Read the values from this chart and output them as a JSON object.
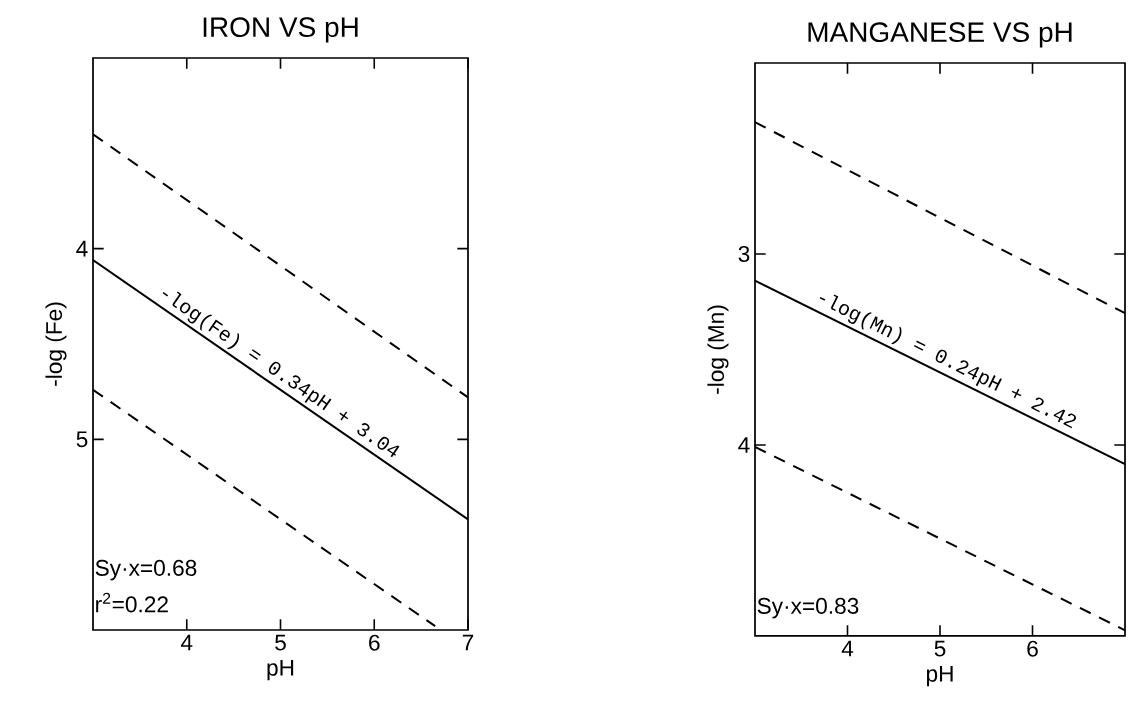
{
  "chart_data": [
    {
      "type": "line",
      "title": "IRON VS pH",
      "xlabel": "pH",
      "ylabel": "-log (Fe)",
      "xlim": [
        3,
        7
      ],
      "ylim": [
        6,
        3
      ],
      "xticks": [
        4,
        5,
        6,
        7
      ],
      "yticks": [
        4,
        5
      ],
      "series": [
        {
          "x": [
            3,
            7
          ],
          "values": [
            3.4,
            4.78
          ],
          "color": "#000000",
          "line_style": "dashed"
        },
        {
          "x": [
            3,
            7
          ],
          "values": [
            4.06,
            5.42
          ],
          "color": "#000000",
          "line_style": "solid"
        },
        {
          "x": [
            3,
            6.65
          ],
          "values": [
            4.74,
            5.98
          ],
          "color": "#000000",
          "line_style": "dashed"
        }
      ],
      "annotations": [
        {
          "text": "-log(Fe) = 0.34pH + 3.04",
          "x": 4.9,
          "y": 4.71
        },
        "Sy·x=0.68",
        "r$^{2}$=0.22"
      ]
    },
    {
      "type": "line",
      "title": "MANGANESE VS pH",
      "xlabel": "pH",
      "ylabel": "-log (Mn)",
      "xlim": [
        3,
        7
      ],
      "ylim": [
        5,
        2
      ],
      "xticks": [
        4,
        5,
        6
      ],
      "yticks": [
        3,
        4
      ],
      "series": [
        {
          "x": [
            3,
            7
          ],
          "values": [
            2.31,
            3.31
          ],
          "color": "#000000",
          "line_style": "dashed"
        },
        {
          "x": [
            3,
            7
          ],
          "values": [
            3.14,
            4.1
          ],
          "color": "#000000",
          "line_style": "solid"
        },
        {
          "x": [
            3,
            7
          ],
          "values": [
            4.01,
            4.97
          ],
          "color": "#000000",
          "line_style": "dashed"
        }
      ],
      "annotations": [
        {
          "text": "-log(Mn) = 0.24pH + 2.42",
          "x": 5.0,
          "y": 3.62
        },
        "Sy·x=0.83"
      ]
    }
  ]
}
